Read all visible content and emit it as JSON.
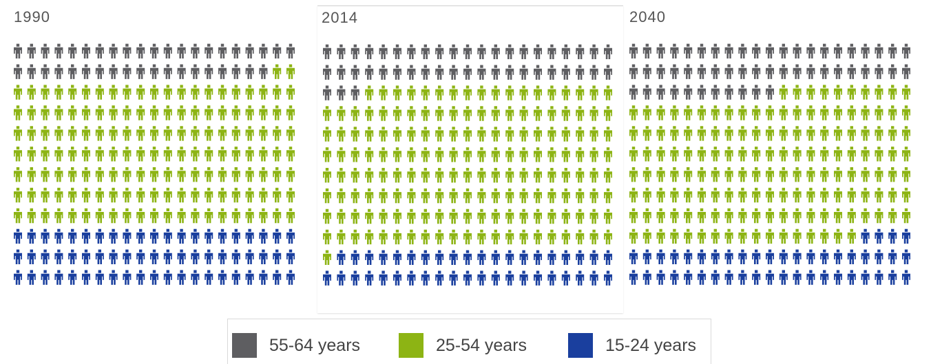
{
  "chart_data": [
    {
      "type": "pictogram",
      "title": "1990",
      "icons_per_row": 21,
      "series": [
        {
          "name": "55-64 years",
          "count": 40,
          "color": "#5e5e61"
        },
        {
          "name": "25-54 years",
          "count": 149,
          "color": "#8db414"
        },
        {
          "name": "15-24 years",
          "count": 63,
          "color": "#1a3f9e"
        }
      ]
    },
    {
      "type": "pictogram",
      "title": "2014",
      "icons_per_row": 21,
      "series": [
        {
          "name": "55-64 years",
          "count": 45,
          "color": "#5e5e61"
        },
        {
          "name": "25-54 years",
          "count": 166,
          "color": "#8db414"
        },
        {
          "name": "15-24 years",
          "count": 41,
          "color": "#1a3f9e"
        }
      ]
    },
    {
      "type": "pictogram",
      "title": "2040",
      "icons_per_row": 21,
      "series": [
        {
          "name": "55-64 years",
          "count": 53,
          "color": "#5e5e61"
        },
        {
          "name": "25-54 years",
          "count": 153,
          "color": "#8db414"
        },
        {
          "name": "15-24 years",
          "count": 46,
          "color": "#1a3f9e"
        }
      ]
    }
  ],
  "legend": [
    {
      "label": "55-64 years",
      "color": "#5e5e61"
    },
    {
      "label": "25-54 years",
      "color": "#8db414"
    },
    {
      "label": "15-24 years",
      "color": "#1a3f9e"
    }
  ]
}
